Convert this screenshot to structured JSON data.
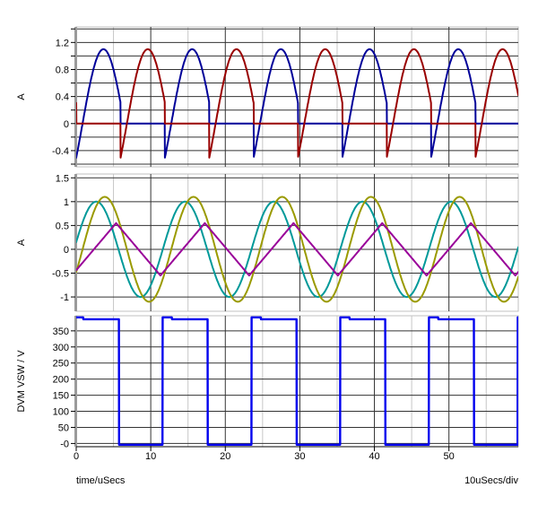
{
  "figure": {
    "background": "#ffffff",
    "grid_major_color": "#333333",
    "grid_minor_color": "#c6c6c6",
    "border_color": "#c0c0c0",
    "spine_color": "#9a9a9a",
    "text_color": "#000000"
  },
  "x_axis": {
    "title": "time/uSecs",
    "scale_label": "10uSecs/div",
    "range": [
      0,
      59.3
    ],
    "major_ticks": [
      0,
      10,
      20,
      30,
      40,
      50
    ],
    "minor_ticks": [
      5,
      15,
      25,
      35,
      45,
      55
    ],
    "tick_labels": [
      "0",
      "10",
      "20",
      "30",
      "40",
      "50"
    ]
  },
  "chart_data": [
    {
      "type": "line",
      "title": "",
      "xlabel": "time/uSecs",
      "ylabel": "A",
      "y_range": [
        -0.64,
        1.43
      ],
      "y_grid_values": [
        -0.6,
        -0.4,
        -0.2,
        0,
        0.2,
        0.4,
        0.6,
        0.8,
        1.0,
        1.2,
        1.4
      ],
      "y_tick_values": [
        1.2,
        0.8,
        0.4,
        0,
        -0.4
      ],
      "y_tick_labels": [
        "1.2",
        "0.8",
        "0.4",
        "0",
        "-0.4"
      ],
      "description": "Alternating rectified half-sine current pulses; each device conducts half the 11.9uSec period, dipping to -0.5A at turn-on, peaking at 1.1A, dropping to 0 at turn-off",
      "series": [
        {
          "name": "pulse-blue",
          "color": "#000099",
          "width": 2,
          "kind": "rectified_pulse",
          "period": 11.9,
          "offset": 0,
          "conduct": 5.95,
          "zero_cross": 0.85,
          "res_period": 11.2,
          "amplitude": 1.1,
          "start_dip": -0.5
        },
        {
          "name": "pulse-red",
          "color": "#990000",
          "width": 2,
          "kind": "rectified_pulse",
          "period": 11.9,
          "offset": 5.95,
          "conduct": 5.95,
          "zero_cross": 0.85,
          "res_period": 11.2,
          "amplitude": 1.1,
          "start_dip": -0.5
        }
      ]
    },
    {
      "type": "line",
      "title": "",
      "xlabel": "time/uSecs",
      "ylabel": "A",
      "y_range": [
        -1.3,
        1.58
      ],
      "y_grid_values": [
        -1,
        -0.5,
        0,
        0.5,
        1,
        1.5
      ],
      "y_tick_values": [
        1.5,
        1,
        0.5,
        0,
        -0.5,
        -1
      ],
      "y_tick_labels": [
        "1.5",
        "1",
        "0.5",
        "0",
        "-0.5",
        "-1"
      ],
      "description": "Resonant tank currents: two sinusoids (1.0A and 1.1A peak, period 11.9uSecs, slightly phase shifted) and a +/-0.55A triangular magnetizing current",
      "series": [
        {
          "name": "sine-teal",
          "color": "#009999",
          "width": 2,
          "kind": "sine",
          "amplitude": 1.0,
          "period": 11.9,
          "phase_rad": 0.15
        },
        {
          "name": "sine-olive",
          "color": "#9a9a00",
          "width": 2,
          "kind": "sine",
          "amplitude": 1.1,
          "period": 11.9,
          "phase_rad": -0.45
        },
        {
          "name": "triangle-purple",
          "color": "#990099",
          "width": 2,
          "kind": "triangle",
          "period": 11.9,
          "peak": 0.55,
          "min": -0.55,
          "first_peak_t": 5.35
        }
      ]
    },
    {
      "type": "line",
      "title": "",
      "xlabel": "time/uSecs",
      "ylabel": "DVM VSW / V",
      "y_range": [
        -10,
        397
      ],
      "y_grid_values": [
        0,
        50,
        100,
        150,
        200,
        250,
        300,
        350
      ],
      "y_tick_values": [
        350,
        300,
        250,
        200,
        150,
        100,
        50,
        0
      ],
      "y_tick_labels": [
        "350",
        "300",
        "250",
        "200",
        "150",
        "100",
        "50",
        "-0"
      ],
      "description": "Switch-node voltage square wave, ~50% duty, swinging between ~0V and ~390V with period 11.9uSecs",
      "series": [
        {
          "name": "square-blue",
          "color": "#0000ee",
          "width": 2.4,
          "kind": "square",
          "period": 11.9,
          "first_fall": 5.75,
          "first_rise": 11.6,
          "high_initial": 392,
          "high_settled": 386,
          "notch_duration": 1.25,
          "low": -4
        }
      ]
    }
  ]
}
